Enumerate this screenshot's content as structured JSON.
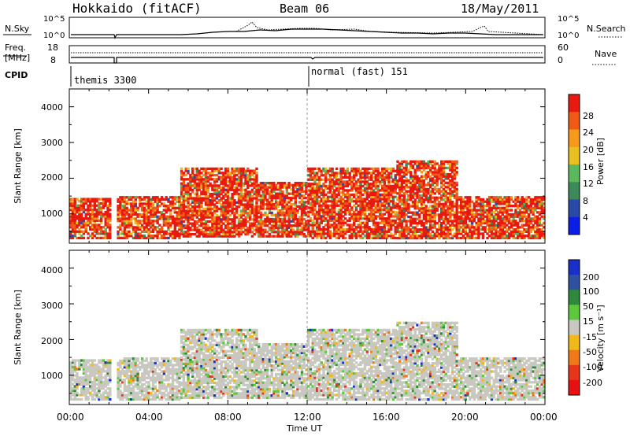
{
  "header": {
    "station": "Hokkaido (fitACF)",
    "beam": "Beam 06",
    "date": "18/May/2011"
  },
  "noise_panel": {
    "left_label": "N.Sky",
    "right_label": "N.Search",
    "left_ticks": [
      "10^5",
      "10^0"
    ],
    "right_ticks": [
      "10^5",
      "10^0"
    ]
  },
  "freq_panel": {
    "left_label_1": "Freq.",
    "left_label_2": "[MHz]",
    "right_label": "Nave",
    "left_ticks": [
      "18",
      "8"
    ],
    "right_ticks": [
      "60",
      "0"
    ]
  },
  "cpid": {
    "label": "CPID",
    "modes": [
      {
        "name": "themis 3300",
        "start_hour": 0
      },
      {
        "name": "normal (fast) 151",
        "start_hour": 12
      }
    ]
  },
  "x_axis": {
    "label": "Time UT",
    "ticks": [
      "00:00",
      "04:00",
      "08:00",
      "12:00",
      "16:00",
      "20:00",
      "00:00"
    ]
  },
  "power_panel": {
    "y_label": "Slant Range [km]",
    "y_ticks": [
      "1000",
      "2000",
      "3000",
      "4000"
    ],
    "colorbar_label": "Power [dB]",
    "colorbar_ticks": [
      "4",
      "8",
      "12",
      "16",
      "20",
      "24",
      "28"
    ],
    "colors": [
      "#0a1ee6",
      "#2a48a8",
      "#3c8a5a",
      "#5cb85c",
      "#e8c020",
      "#f59a1a",
      "#ef5a16",
      "#e81a10"
    ]
  },
  "velocity_panel": {
    "y_label": "Slant Range [km]",
    "y_ticks": [
      "1000",
      "2000",
      "3000",
      "4000"
    ],
    "colorbar_label": "Velocity [m s⁻¹]",
    "colorbar_ticks": [
      "200",
      "100",
      "50",
      "15",
      "-15",
      "-50",
      "-100",
      "-200"
    ],
    "colors": [
      "#1830c8",
      "#3050a0",
      "#2e8a3a",
      "#5cc83c",
      "#c8c8c0",
      "#f0b818",
      "#f07818",
      "#e83418",
      "#e81010"
    ]
  },
  "chart_data": {
    "type": "heatmap",
    "xlabel": "Time UT",
    "ylabel": "Slant Range [km]",
    "xlim": [
      0,
      24
    ],
    "ylim": [
      180,
      4500
    ],
    "blocks": [
      {
        "t0": 0.0,
        "t1": 2.1,
        "r0": 300,
        "r1": 1400,
        "power_level": 6
      },
      {
        "t0": 2.4,
        "t1": 5.5,
        "r0": 300,
        "r1": 1500,
        "power_level": 6
      },
      {
        "t0": 5.5,
        "t1": 9.5,
        "r0": 400,
        "r1": 2300,
        "power_level": 7
      },
      {
        "t0": 9.5,
        "t1": 12.0,
        "r0": 400,
        "r1": 1800,
        "power_level": 7
      },
      {
        "t0": 12.0,
        "t1": 16.5,
        "r0": 300,
        "r1": 2300,
        "power_level": 7
      },
      {
        "t0": 16.5,
        "t1": 19.5,
        "r0": 300,
        "r1": 2400,
        "power_level": 7
      },
      {
        "t0": 19.5,
        "t1": 24.0,
        "r0": 300,
        "r1": 1500,
        "power_level": 6
      }
    ]
  }
}
